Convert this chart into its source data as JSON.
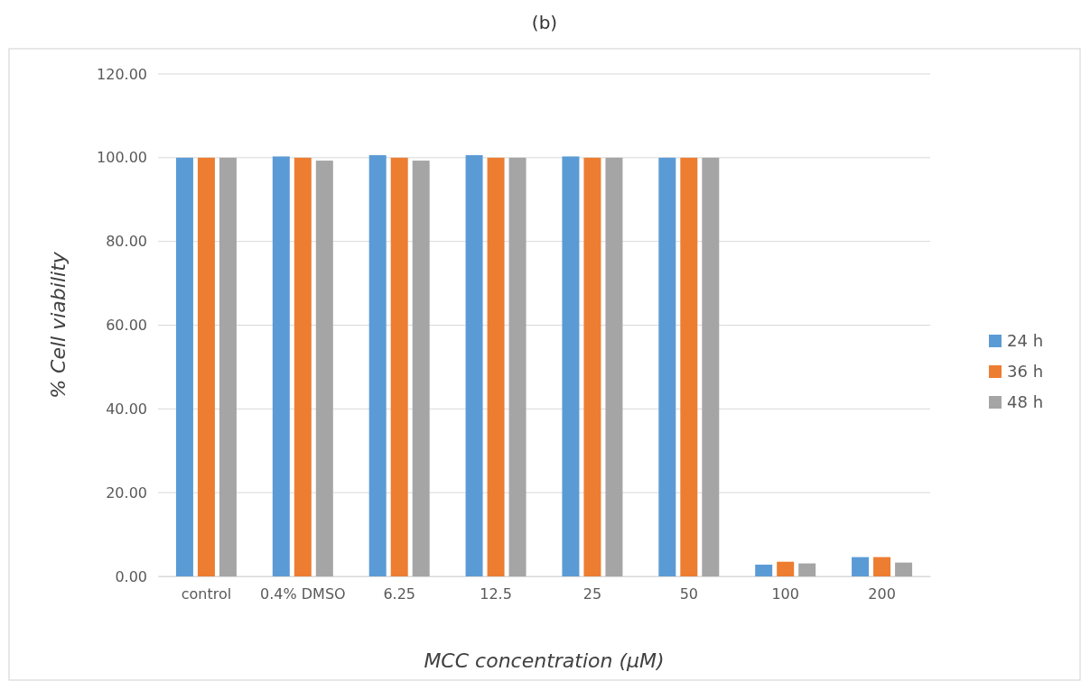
{
  "chart_data": {
    "type": "bar",
    "title": "(b)",
    "xlabel": "MCC concentration (μM)",
    "ylabel": "% Cell viability",
    "categories": [
      "control",
      "0.4% DMSO",
      "6.25",
      "12.5",
      "25",
      "50",
      "100",
      "200"
    ],
    "series": [
      {
        "name": "24 h",
        "color": "#5b9bd5",
        "values": [
          100,
          100.3,
          100.6,
          100.6,
          100.3,
          100,
          2.8,
          4.6
        ]
      },
      {
        "name": "36 h",
        "color": "#ed7d31",
        "values": [
          100,
          100,
          100,
          100,
          100,
          100,
          3.5,
          4.6
        ]
      },
      {
        "name": "48 h",
        "color": "#a5a5a5",
        "values": [
          100,
          99.3,
          99.3,
          100,
          100,
          100,
          3.1,
          3.3
        ]
      }
    ],
    "ylim": [
      0,
      120
    ],
    "yticks": [
      {
        "value": 0,
        "label": "0.00"
      },
      {
        "value": 20,
        "label": "20.00"
      },
      {
        "value": 40,
        "label": "40.00"
      },
      {
        "value": 60,
        "label": "60.00"
      },
      {
        "value": 80,
        "label": "80.00"
      },
      {
        "value": 100,
        "label": "100.00"
      },
      {
        "value": 120,
        "label": "120.00"
      }
    ],
    "grid": "y",
    "legend": "right"
  }
}
